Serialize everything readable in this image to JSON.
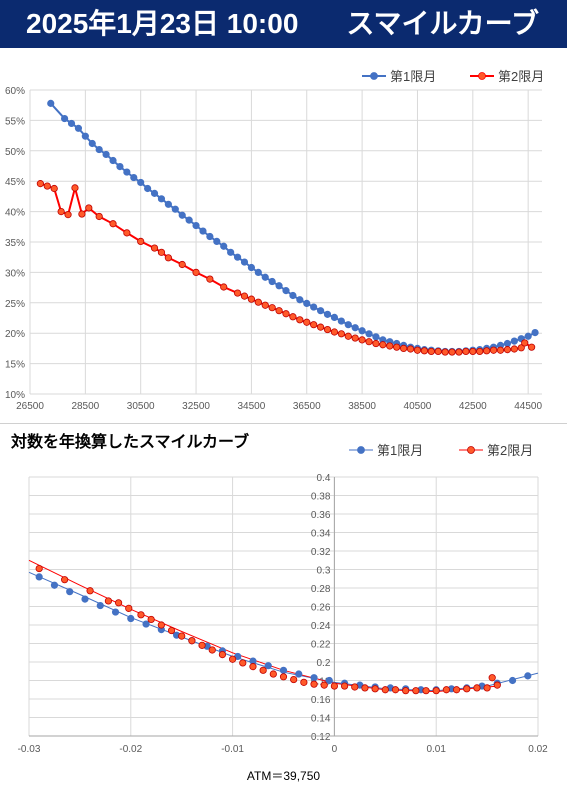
{
  "header": {
    "date": "2025年1月23日 10:00",
    "title": "スマイルカーブ"
  },
  "colors": {
    "series1": "#4472c4",
    "series2": "#ff0000",
    "series2_fill": "#ff5a2a",
    "banner": "#0b2a6f",
    "grid": "#d9d9d9"
  },
  "chart_data": [
    {
      "type": "line",
      "title": "",
      "xlabel": "",
      "ylabel": "",
      "xlim": [
        26500,
        45000
      ],
      "ylim": [
        0.1,
        0.6
      ],
      "x_ticks": [
        26500,
        28500,
        30500,
        32500,
        34500,
        36500,
        38500,
        40500,
        42500,
        44500
      ],
      "y_ticks": [
        0.1,
        0.15,
        0.2,
        0.25,
        0.3,
        0.35,
        0.4,
        0.45,
        0.5,
        0.55,
        0.6
      ],
      "y_tick_labels": [
        "10%",
        "15%",
        "20%",
        "25%",
        "30%",
        "35%",
        "40%",
        "45%",
        "50%",
        "55%",
        "60%"
      ],
      "legend": "top-right",
      "grid": true,
      "series": [
        {
          "name": "第1限月",
          "x": [
            27250,
            27750,
            28000,
            28250,
            28500,
            28750,
            29000,
            29250,
            29500,
            29750,
            30000,
            30250,
            30500,
            30750,
            31000,
            31250,
            31500,
            31750,
            32000,
            32250,
            32500,
            32750,
            33000,
            33250,
            33500,
            33750,
            34000,
            34250,
            34500,
            34750,
            35000,
            35250,
            35500,
            35750,
            36000,
            36250,
            36500,
            36750,
            37000,
            37250,
            37500,
            37750,
            38000,
            38250,
            38500,
            38750,
            39000,
            39250,
            39500,
            39750,
            40000,
            40250,
            40500,
            40750,
            41000,
            41250,
            41500,
            41750,
            42000,
            42250,
            42500,
            42750,
            43000,
            43250,
            43500,
            43750,
            44000,
            44250,
            44500,
            44750
          ],
          "values": [
            0.578,
            0.553,
            0.545,
            0.537,
            0.524,
            0.512,
            0.502,
            0.494,
            0.484,
            0.474,
            0.465,
            0.456,
            0.448,
            0.438,
            0.43,
            0.421,
            0.412,
            0.404,
            0.394,
            0.386,
            0.377,
            0.368,
            0.359,
            0.351,
            0.343,
            0.333,
            0.325,
            0.317,
            0.308,
            0.3,
            0.292,
            0.285,
            0.278,
            0.27,
            0.262,
            0.255,
            0.249,
            0.243,
            0.237,
            0.231,
            0.226,
            0.22,
            0.214,
            0.209,
            0.204,
            0.199,
            0.194,
            0.189,
            0.186,
            0.183,
            0.18,
            0.177,
            0.175,
            0.173,
            0.172,
            0.171,
            0.17,
            0.17,
            0.17,
            0.171,
            0.172,
            0.173,
            0.175,
            0.177,
            0.18,
            0.183,
            0.187,
            0.191,
            0.195,
            0.201
          ]
        },
        {
          "name": "第2限月",
          "x": [
            26875,
            27125,
            27375,
            27625,
            27875,
            28125,
            28375,
            28625,
            29000,
            29500,
            30000,
            30500,
            31000,
            31250,
            31500,
            32000,
            32500,
            33000,
            33500,
            34000,
            34250,
            34500,
            34750,
            35000,
            35250,
            35500,
            35750,
            36000,
            36250,
            36500,
            36750,
            37000,
            37250,
            37500,
            37750,
            38000,
            38250,
            38500,
            38750,
            39000,
            39250,
            39500,
            39750,
            40000,
            40250,
            40500,
            40750,
            41000,
            41250,
            41500,
            41750,
            42000,
            42250,
            42500,
            42750,
            43000,
            43250,
            43500,
            43750,
            44000,
            44250,
            44375,
            44625
          ],
          "values": [
            0.446,
            0.442,
            0.438,
            0.4,
            0.395,
            0.439,
            0.396,
            0.406,
            0.392,
            0.38,
            0.365,
            0.351,
            0.34,
            0.333,
            0.324,
            0.313,
            0.3,
            0.289,
            0.276,
            0.266,
            0.261,
            0.256,
            0.251,
            0.246,
            0.242,
            0.237,
            0.232,
            0.227,
            0.222,
            0.218,
            0.214,
            0.21,
            0.206,
            0.202,
            0.199,
            0.195,
            0.192,
            0.189,
            0.186,
            0.183,
            0.181,
            0.179,
            0.177,
            0.175,
            0.174,
            0.172,
            0.171,
            0.17,
            0.17,
            0.169,
            0.169,
            0.169,
            0.17,
            0.17,
            0.17,
            0.171,
            0.172,
            0.172,
            0.173,
            0.174,
            0.176,
            0.184,
            0.177
          ]
        }
      ]
    },
    {
      "type": "scatter",
      "title": "対数を年換算したスマイルカーブ",
      "xlabel": "",
      "ylabel": "",
      "xlim": [
        -0.03,
        0.02
      ],
      "ylim": [
        0.12,
        0.4
      ],
      "x_ticks": [
        -0.03,
        -0.02,
        -0.01,
        0,
        0.01,
        0.02
      ],
      "x_tick_labels": [
        "-0.03",
        "-0.02",
        "-0.01",
        "0",
        "0.01",
        "0.02"
      ],
      "y_ticks": [
        0.12,
        0.14,
        0.16,
        0.18,
        0.2,
        0.22,
        0.24,
        0.26,
        0.28,
        0.3,
        0.32,
        0.34,
        0.36,
        0.38,
        0.4
      ],
      "y_tick_labels": [
        "0.12",
        "0.14",
        "0.16",
        "0.18",
        "0.2",
        "0.22",
        "0.24",
        "0.26",
        "0.28",
        "0.3",
        "0.32",
        "0.34",
        "0.36",
        "0.38",
        "0.4"
      ],
      "legend": "top-right",
      "grid": true,
      "annotation": "ATM＝39,750",
      "series": [
        {
          "name": "第1限月",
          "x": [
            -0.029,
            -0.0275,
            -0.026,
            -0.0245,
            -0.023,
            -0.0215,
            -0.02,
            -0.0185,
            -0.017,
            -0.0155,
            -0.014,
            -0.0125,
            -0.011,
            -0.0095,
            -0.008,
            -0.0065,
            -0.005,
            -0.0035,
            -0.002,
            -0.0005,
            0.001,
            0.0025,
            0.004,
            0.0055,
            0.007,
            0.0085,
            0.01,
            0.0115,
            0.013,
            0.0145,
            0.016,
            0.0175,
            0.019
          ],
          "values": [
            0.292,
            0.283,
            0.276,
            0.268,
            0.261,
            0.254,
            0.247,
            0.241,
            0.235,
            0.229,
            0.223,
            0.217,
            0.212,
            0.206,
            0.201,
            0.196,
            0.191,
            0.187,
            0.183,
            0.18,
            0.177,
            0.175,
            0.173,
            0.172,
            0.171,
            0.17,
            0.17,
            0.171,
            0.172,
            0.174,
            0.177,
            0.18,
            0.185
          ]
        },
        {
          "name": "第2限月",
          "x": [
            -0.029,
            -0.0265,
            -0.024,
            -0.0222,
            -0.0212,
            -0.0202,
            -0.019,
            -0.018,
            -0.017,
            -0.016,
            -0.015,
            -0.014,
            -0.013,
            -0.012,
            -0.011,
            -0.01,
            -0.009,
            -0.008,
            -0.007,
            -0.006,
            -0.005,
            -0.004,
            -0.003,
            -0.002,
            -0.001,
            0.0,
            0.001,
            0.002,
            0.003,
            0.004,
            0.005,
            0.006,
            0.007,
            0.008,
            0.009,
            0.01,
            0.011,
            0.012,
            0.013,
            0.014,
            0.015,
            0.0155,
            0.016
          ],
          "values": [
            0.301,
            0.289,
            0.277,
            0.266,
            0.264,
            0.258,
            0.251,
            0.246,
            0.24,
            0.234,
            0.228,
            0.223,
            0.218,
            0.213,
            0.208,
            0.203,
            0.199,
            0.195,
            0.191,
            0.187,
            0.184,
            0.181,
            0.178,
            0.176,
            0.175,
            0.174,
            0.174,
            0.173,
            0.172,
            0.171,
            0.17,
            0.17,
            0.169,
            0.169,
            0.169,
            0.169,
            0.17,
            0.17,
            0.171,
            0.172,
            0.172,
            0.183,
            0.175
          ]
        }
      ]
    }
  ]
}
